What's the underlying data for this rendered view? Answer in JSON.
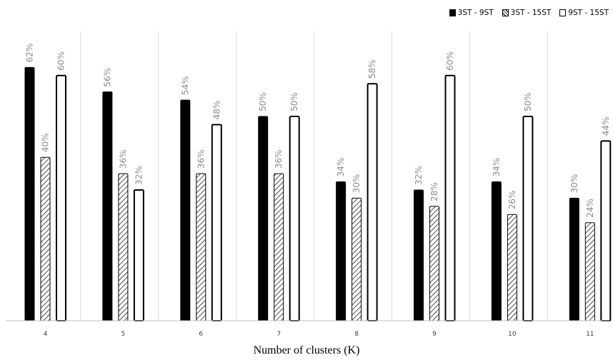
{
  "chart_data": {
    "type": "bar",
    "title": "",
    "xlabel": "Number of clusters (K)",
    "ylabel": "",
    "ylim": [
      0,
      70
    ],
    "grid": false,
    "legend_position": "top-right",
    "categories": [
      "4",
      "5",
      "6",
      "7",
      "8",
      "9",
      "10",
      "11"
    ],
    "series": [
      {
        "name": "3ST - 9ST",
        "values": [
          62,
          56,
          54,
          50,
          34,
          32,
          34,
          30
        ],
        "labels": [
          "62%",
          "56%",
          "54%",
          "50%",
          "34%",
          "32%",
          "34%",
          "30%"
        ],
        "fill": "solid-black"
      },
      {
        "name": "3ST - 15ST",
        "values": [
          40,
          36,
          36,
          36,
          30,
          28,
          26,
          24
        ],
        "labels": [
          "40%",
          "36%",
          "36%",
          "36%",
          "30%",
          "28%",
          "26%",
          "24%"
        ],
        "fill": "hatched"
      },
      {
        "name": "9ST - 15ST",
        "values": [
          60,
          32,
          48,
          50,
          58,
          60,
          50,
          44
        ],
        "labels": [
          "60%",
          "32%",
          "48%",
          "50%",
          "58%",
          "60%",
          "50%",
          "44%"
        ],
        "fill": "white-outline"
      }
    ],
    "colors": {
      "bar_black": "#000000",
      "bar_outline": "#000000",
      "data_label": "#8c8c8c",
      "separator": "#d9d9d9",
      "axis": "#bfbfbf"
    }
  }
}
